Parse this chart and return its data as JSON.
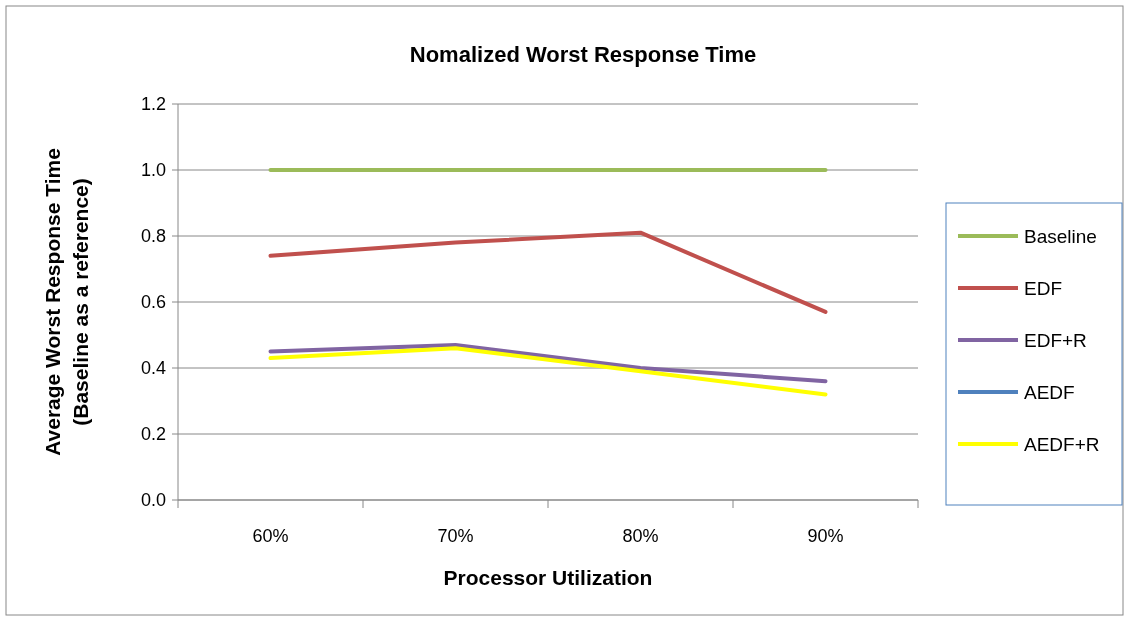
{
  "chart_data": {
    "type": "line",
    "title": "Nomalized Worst Response Time",
    "xlabel": "Processor Utilization",
    "ylabel": "Average Worst Response Time\n(Baseline as  a reference)",
    "categories": [
      "60%",
      "70%",
      "80%",
      "90%"
    ],
    "series": [
      {
        "name": "Baseline",
        "color": "#9bbb59",
        "values": [
          1.0,
          1.0,
          1.0,
          1.0
        ]
      },
      {
        "name": "EDF",
        "color": "#c0504d",
        "values": [
          0.74,
          0.78,
          0.81,
          0.57
        ]
      },
      {
        "name": "EDF+R",
        "color": "#8064a2",
        "values": [
          0.45,
          0.47,
          0.4,
          0.36
        ]
      },
      {
        "name": "AEDF",
        "color": "#4f81bd",
        "values": [
          null,
          null,
          null,
          null
        ]
      },
      {
        "name": "AEDF+R",
        "color": "#ffff00",
        "values": [
          0.43,
          0.46,
          0.39,
          0.32
        ]
      }
    ],
    "ylim": [
      0,
      1.2
    ],
    "yticks": [
      {
        "value": 0,
        "label": "0.0"
      },
      {
        "value": 0.2,
        "label": "0.2"
      },
      {
        "value": 0.4,
        "label": "0.4"
      },
      {
        "value": 0.6,
        "label": "0.6"
      },
      {
        "value": 0.8,
        "label": "0.8"
      },
      {
        "value": 1,
        "label": "1.0"
      },
      {
        "value": 1.2,
        "label": "1.2"
      }
    ],
    "grid": "y",
    "legend": "right",
    "marker": "none",
    "line_style": "solid"
  }
}
